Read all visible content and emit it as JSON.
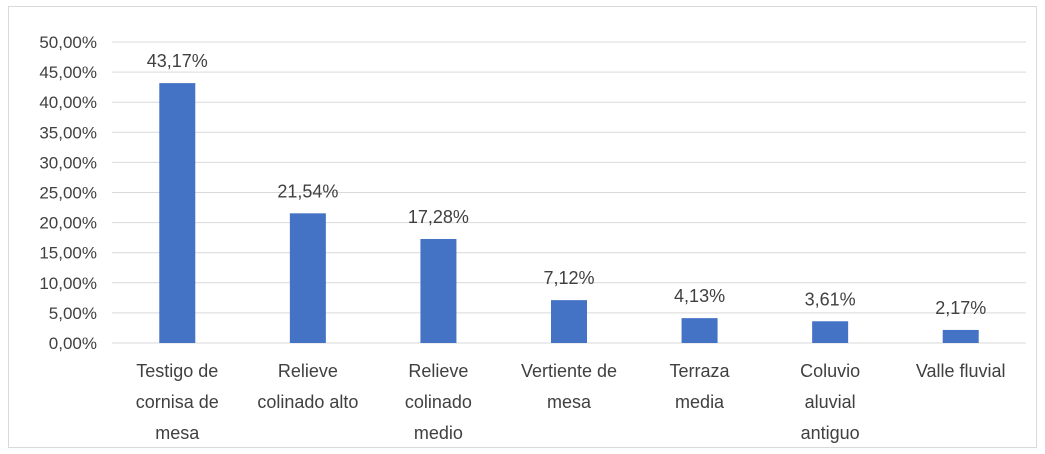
{
  "chart_data": {
    "type": "bar",
    "categories": [
      [
        "Testigo de",
        "cornisa de",
        "mesa"
      ],
      [
        "Relieve",
        "colinado alto"
      ],
      [
        "Relieve",
        "colinado",
        "medio"
      ],
      [
        "Vertiente de",
        "mesa"
      ],
      [
        "Terraza",
        "media"
      ],
      [
        "Coluvio",
        "aluvial",
        "antiguo"
      ],
      [
        "Valle fluvial"
      ]
    ],
    "values": [
      43.17,
      21.54,
      17.28,
      7.12,
      4.13,
      3.61,
      2.17
    ],
    "data_labels": [
      "43,17%",
      "21,54%",
      "17,28%",
      "7,12%",
      "4,13%",
      "3,61%",
      "2,17%"
    ],
    "y_ticks": [
      0,
      5,
      10,
      15,
      20,
      25,
      30,
      35,
      40,
      45,
      50
    ],
    "y_tick_labels": [
      "0,00%",
      "5,00%",
      "10,00%",
      "15,00%",
      "20,00%",
      "25,00%",
      "30,00%",
      "35,00%",
      "40,00%",
      "45,00%",
      "50,00%"
    ],
    "ylim": [
      0,
      50
    ],
    "title": "",
    "xlabel": "",
    "ylabel": "",
    "grid": true,
    "legend": "none",
    "colors": {
      "bar": "#4472c4",
      "grid": "#d9d9d9",
      "text": "#404040"
    }
  }
}
